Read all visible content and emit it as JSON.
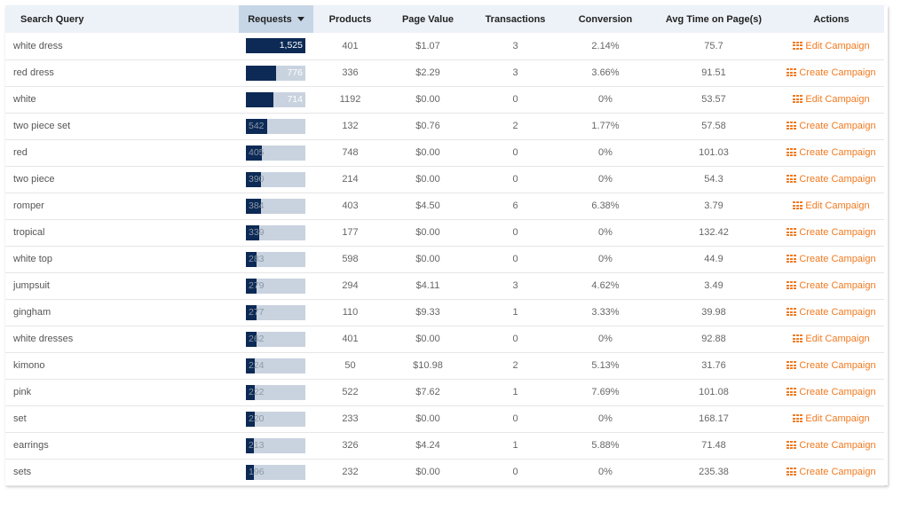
{
  "table": {
    "columns": {
      "query": "Search Query",
      "requests": "Requests",
      "products": "Products",
      "page_value": "Page Value",
      "transactions": "Transactions",
      "conversion": "Conversion",
      "avg_time": "Avg Time on Page(s)",
      "actions": "Actions"
    },
    "sort": {
      "column": "requests",
      "direction": "descending"
    },
    "max_requests": 1525,
    "rows": [
      {
        "query": "white dress",
        "requests": "1,525",
        "requests_value": 1525,
        "products": "401",
        "page_value": "$1.07",
        "transactions": "3",
        "conversion": "2.14%",
        "avg_time": "75.7",
        "action": "Edit Campaign"
      },
      {
        "query": "red dress",
        "requests": "776",
        "requests_value": 776,
        "products": "336",
        "page_value": "$2.29",
        "transactions": "3",
        "conversion": "3.66%",
        "avg_time": "91.51",
        "action": "Create Campaign"
      },
      {
        "query": "white",
        "requests": "714",
        "requests_value": 714,
        "products": "1192",
        "page_value": "$0.00",
        "transactions": "0",
        "conversion": "0%",
        "avg_time": "53.57",
        "action": "Edit Campaign"
      },
      {
        "query": "two piece set",
        "requests": "542",
        "requests_value": 542,
        "products": "132",
        "page_value": "$0.76",
        "transactions": "2",
        "conversion": "1.77%",
        "avg_time": "57.58",
        "action": "Create Campaign"
      },
      {
        "query": "red",
        "requests": "405",
        "requests_value": 405,
        "products": "748",
        "page_value": "$0.00",
        "transactions": "0",
        "conversion": "0%",
        "avg_time": "101.03",
        "action": "Create Campaign"
      },
      {
        "query": "two piece",
        "requests": "390",
        "requests_value": 390,
        "products": "214",
        "page_value": "$0.00",
        "transactions": "0",
        "conversion": "0%",
        "avg_time": "54.3",
        "action": "Create Campaign"
      },
      {
        "query": "romper",
        "requests": "384",
        "requests_value": 384,
        "products": "403",
        "page_value": "$4.50",
        "transactions": "6",
        "conversion": "6.38%",
        "avg_time": "3.79",
        "action": "Edit Campaign"
      },
      {
        "query": "tropical",
        "requests": "339",
        "requests_value": 339,
        "products": "177",
        "page_value": "$0.00",
        "transactions": "0",
        "conversion": "0%",
        "avg_time": "132.42",
        "action": "Create Campaign"
      },
      {
        "query": "white top",
        "requests": "283",
        "requests_value": 283,
        "products": "598",
        "page_value": "$0.00",
        "transactions": "0",
        "conversion": "0%",
        "avg_time": "44.9",
        "action": "Create Campaign"
      },
      {
        "query": "jumpsuit",
        "requests": "279",
        "requests_value": 279,
        "products": "294",
        "page_value": "$4.11",
        "transactions": "3",
        "conversion": "4.62%",
        "avg_time": "3.49",
        "action": "Create Campaign"
      },
      {
        "query": "gingham",
        "requests": "277",
        "requests_value": 277,
        "products": "110",
        "page_value": "$9.33",
        "transactions": "1",
        "conversion": "3.33%",
        "avg_time": "39.98",
        "action": "Create Campaign"
      },
      {
        "query": "white dresses",
        "requests": "262",
        "requests_value": 262,
        "products": "401",
        "page_value": "$0.00",
        "transactions": "0",
        "conversion": "0%",
        "avg_time": "92.88",
        "action": "Edit Campaign"
      },
      {
        "query": "kimono",
        "requests": "224",
        "requests_value": 224,
        "products": "50",
        "page_value": "$10.98",
        "transactions": "2",
        "conversion": "5.13%",
        "avg_time": "31.76",
        "action": "Create Campaign"
      },
      {
        "query": "pink",
        "requests": "222",
        "requests_value": 222,
        "products": "522",
        "page_value": "$7.62",
        "transactions": "1",
        "conversion": "7.69%",
        "avg_time": "101.08",
        "action": "Create Campaign"
      },
      {
        "query": "set",
        "requests": "220",
        "requests_value": 220,
        "products": "233",
        "page_value": "$0.00",
        "transactions": "0",
        "conversion": "0%",
        "avg_time": "168.17",
        "action": "Edit Campaign"
      },
      {
        "query": "earrings",
        "requests": "213",
        "requests_value": 213,
        "products": "326",
        "page_value": "$4.24",
        "transactions": "1",
        "conversion": "5.88%",
        "avg_time": "71.48",
        "action": "Create Campaign"
      },
      {
        "query": "sets",
        "requests": "196",
        "requests_value": 196,
        "products": "232",
        "page_value": "$0.00",
        "transactions": "0",
        "conversion": "0%",
        "avg_time": "235.38",
        "action": "Create Campaign"
      }
    ]
  },
  "icons": {
    "action_icon": "grid-icon",
    "sort_icon": "caret-down-icon"
  },
  "colors": {
    "bar_fill": "#0c2a55",
    "bar_track": "#c9d3df",
    "action": "#f07a21",
    "header_bg": "#edf2f8",
    "sorted_header_bg": "#c7d6e6"
  }
}
